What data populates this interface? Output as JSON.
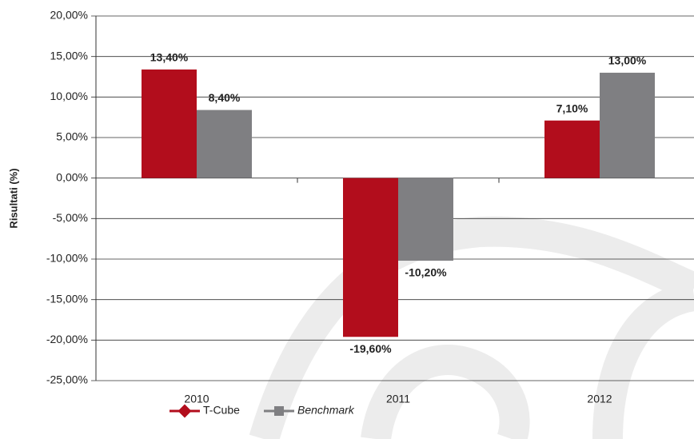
{
  "chart_data": {
    "type": "bar",
    "y_label": "Risultati (%)",
    "categories": [
      "2010",
      "2011",
      "2012"
    ],
    "series": [
      {
        "name": "T-Cube",
        "color": "#b20d1c",
        "values": [
          13.4,
          -19.6,
          7.1
        ],
        "value_labels": [
          "13,40%",
          "-19,60%",
          "7,10%"
        ]
      },
      {
        "name": "Benchmark",
        "color": "#7f7f82",
        "values": [
          8.4,
          -10.2,
          13.0
        ],
        "value_labels": [
          "8,40%",
          "-10,20%",
          "13,00%"
        ]
      }
    ],
    "ylim": [
      -25,
      20
    ],
    "yticks": [
      {
        "value": 20,
        "label": "20,00%"
      },
      {
        "value": 15,
        "label": "15,00%"
      },
      {
        "value": 10,
        "label": "10,00%"
      },
      {
        "value": 5,
        "label": "5,00%"
      },
      {
        "value": 0,
        "label": "0,00%"
      },
      {
        "value": -5,
        "label": "-5,00%"
      },
      {
        "value": -10,
        "label": "-10,00%"
      },
      {
        "value": -15,
        "label": "-15,00%"
      },
      {
        "value": -20,
        "label": "-20,00%"
      },
      {
        "value": -25,
        "label": "-25,00%"
      }
    ],
    "grid": true,
    "legend": "bottom"
  }
}
